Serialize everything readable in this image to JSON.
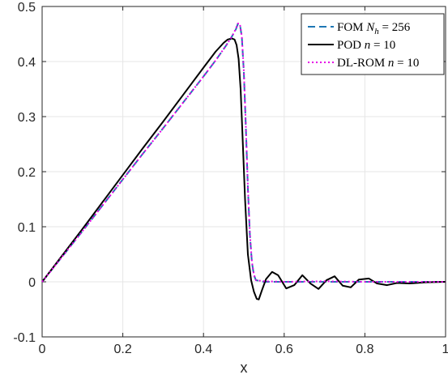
{
  "chart_data": {
    "type": "line",
    "xlabel": "x",
    "ylabel": "",
    "title": "",
    "xlim": [
      0,
      1
    ],
    "ylim": [
      -0.1,
      0.5
    ],
    "xticks": [
      0,
      0.2,
      0.4,
      0.6,
      0.8,
      1
    ],
    "xtick_labels": [
      "0",
      "0.2",
      "0.4",
      "0.6",
      "0.8",
      "1"
    ],
    "yticks": [
      -0.1,
      0,
      0.1,
      0.2,
      0.3,
      0.4,
      0.5
    ],
    "ytick_labels": [
      "-0.1",
      "0",
      "0.1",
      "0.2",
      "0.3",
      "0.4",
      "0.5"
    ],
    "grid": true,
    "legend_position": "top-right",
    "legend": [
      {
        "prefix": "FOM ",
        "var": "N",
        "sub": "h",
        "suffix": " = 256"
      },
      {
        "prefix": "POD ",
        "var": "n",
        "sub": "",
        "suffix": " = 10"
      },
      {
        "prefix": "DL-ROM ",
        "var": "n",
        "sub": "",
        "suffix": " = 10"
      }
    ],
    "series": [
      {
        "style": "dashed",
        "color": "#1f77b4",
        "x": [
          0,
          0.05,
          0.1,
          0.15,
          0.2,
          0.25,
          0.3,
          0.35,
          0.4,
          0.43,
          0.455,
          0.47,
          0.48,
          0.485,
          0.49,
          0.495,
          0.5,
          0.505,
          0.51,
          0.515,
          0.52,
          0.525,
          0.53,
          0.55,
          0.6,
          0.7,
          0.8,
          0.9,
          1.0
        ],
        "y": [
          0,
          0.046,
          0.092,
          0.139,
          0.186,
          0.233,
          0.279,
          0.326,
          0.373,
          0.402,
          0.428,
          0.445,
          0.458,
          0.468,
          0.468,
          0.445,
          0.38,
          0.28,
          0.17,
          0.085,
          0.035,
          0.012,
          0.003,
          0,
          0,
          0,
          0,
          0,
          0
        ]
      },
      {
        "style": "solid",
        "color": "#000000",
        "x": [
          0,
          0.05,
          0.1,
          0.15,
          0.2,
          0.25,
          0.3,
          0.35,
          0.4,
          0.43,
          0.45,
          0.46,
          0.47,
          0.477,
          0.482,
          0.487,
          0.492,
          0.497,
          0.503,
          0.51,
          0.518,
          0.525,
          0.532,
          0.537,
          0.545,
          0.555,
          0.57,
          0.585,
          0.605,
          0.625,
          0.645,
          0.665,
          0.685,
          0.705,
          0.725,
          0.745,
          0.765,
          0.785,
          0.81,
          0.83,
          0.855,
          0.88,
          0.91,
          0.95,
          1.0
        ],
        "y": [
          0,
          0.048,
          0.096,
          0.145,
          0.194,
          0.243,
          0.291,
          0.34,
          0.389,
          0.418,
          0.434,
          0.44,
          0.442,
          0.44,
          0.43,
          0.405,
          0.35,
          0.26,
          0.15,
          0.05,
          0.003,
          -0.018,
          -0.031,
          -0.032,
          -0.015,
          0.005,
          0.018,
          0.012,
          -0.012,
          -0.006,
          0.012,
          -0.003,
          -0.013,
          0.003,
          0.01,
          -0.007,
          -0.01,
          0.004,
          0.006,
          -0.003,
          -0.006,
          -0.002,
          -0.003,
          -0.001,
          0
        ]
      },
      {
        "style": "dotted",
        "color": "#e600e6",
        "x": [
          0,
          0.05,
          0.1,
          0.15,
          0.2,
          0.25,
          0.3,
          0.35,
          0.4,
          0.43,
          0.455,
          0.47,
          0.48,
          0.485,
          0.49,
          0.495,
          0.5,
          0.505,
          0.51,
          0.515,
          0.52,
          0.525,
          0.53,
          0.55,
          0.6,
          0.7,
          0.8,
          0.9,
          1.0
        ],
        "y": [
          0,
          0.046,
          0.092,
          0.139,
          0.186,
          0.233,
          0.279,
          0.326,
          0.373,
          0.402,
          0.428,
          0.445,
          0.459,
          0.469,
          0.469,
          0.446,
          0.382,
          0.282,
          0.172,
          0.087,
          0.036,
          0.013,
          0.003,
          0.001,
          0,
          0.001,
          0,
          0,
          0
        ]
      }
    ]
  }
}
